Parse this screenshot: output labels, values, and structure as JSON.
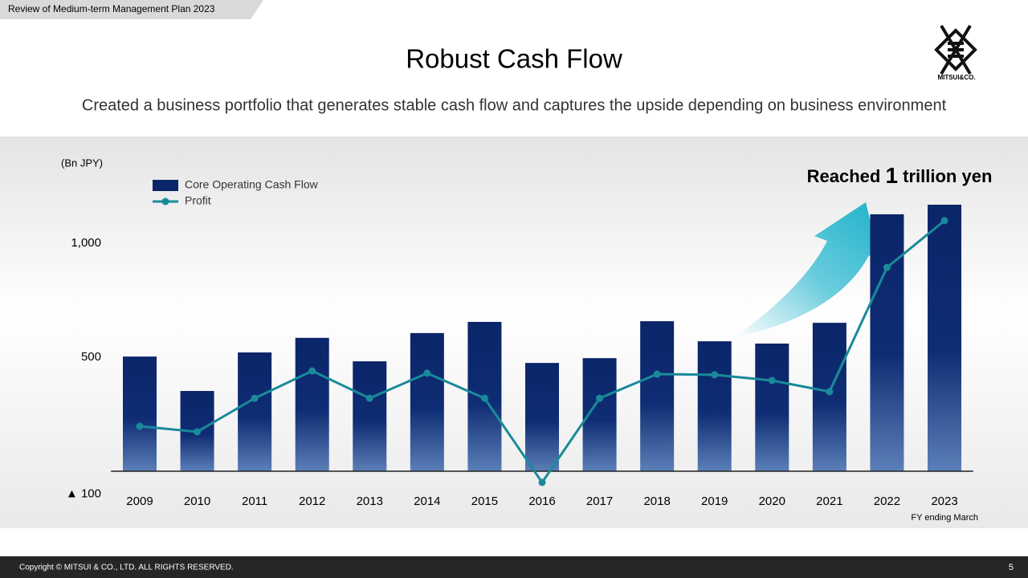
{
  "header": {
    "tab": "Review of Medium-term Management Plan 2023",
    "title": "Robust Cash Flow",
    "subtitle": "Created a business portfolio that generates stable cash flow and captures the upside depending on business environment"
  },
  "logo": {
    "text": "MITSUI&CO."
  },
  "footer": {
    "copyright": "Copyright © MITSUI & CO., LTD. ALL RIGHTS RESERVED.",
    "page": "5"
  },
  "chart_data": {
    "type": "bar",
    "unit_label": "(Bn JPY)",
    "x_note": "FY ending March",
    "annotation": {
      "before": "Reached",
      "number": "1",
      "after": "trillion yen"
    },
    "categories": [
      "2009",
      "2010",
      "2011",
      "2012",
      "2013",
      "2014",
      "2015",
      "2016",
      "2017",
      "2018",
      "2019",
      "2020",
      "2021",
      "2022",
      "2023"
    ],
    "series": [
      {
        "name": "Core Operating Cash Flow",
        "type": "bar",
        "color": "#0b2569",
        "values": [
          503,
          352,
          521,
          585,
          482,
          606,
          655,
          475,
          496,
          658,
          570,
          560,
          651,
          1127,
          1169
        ]
      },
      {
        "name": "Profit",
        "type": "line",
        "color": "#1a8a9a",
        "values": [
          197,
          173,
          320,
          440,
          320,
          430,
          320,
          -49,
          320,
          426,
          423,
          398,
          349,
          894,
          1099
        ]
      }
    ],
    "ylim": [
      -100,
      1200
    ],
    "yticks": [
      {
        "value": -100,
        "label": "▲ 100"
      },
      500,
      {
        "value": 1000,
        "label": "1,000"
      }
    ],
    "grid": false
  }
}
